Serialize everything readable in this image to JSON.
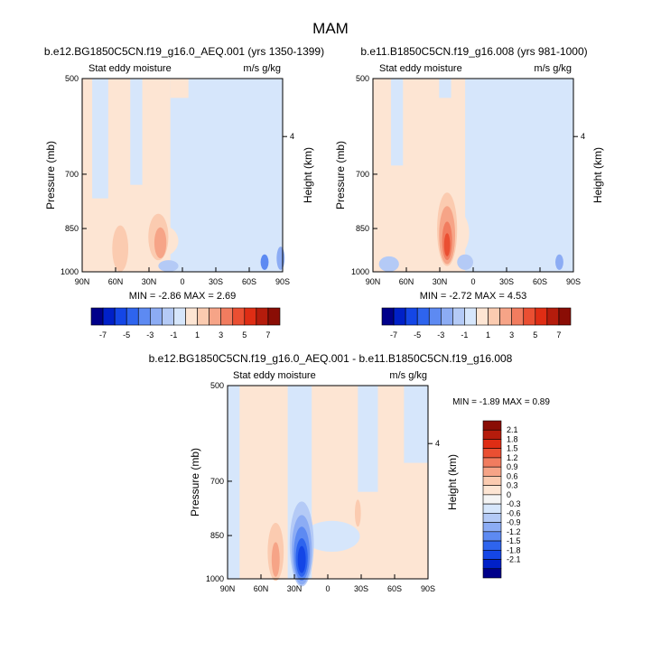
{
  "page_title": "MAM",
  "colors": {
    "neg": [
      "#00008a",
      "#0020c8",
      "#1446e6",
      "#2e64ee",
      "#5d8af2",
      "#8cacf4",
      "#b4caf6",
      "#d6e6fb"
    ],
    "pos": [
      "#fde5d3",
      "#fbcbb0",
      "#f6a487",
      "#f17c5f",
      "#ea4f32",
      "#df2d14",
      "#b51c0c",
      "#8a0d05"
    ],
    "zero": "#f4f4f4",
    "warm_fill": "#fde5d3",
    "cool_fill": "#d6e6fb"
  },
  "chart_data": [
    {
      "type": "heatmap",
      "title": "b.e12.BG1850C5CN.f19_g16.0_AEQ.001 (yrs 1350-1399)",
      "left_string": "Stat eddy moisture",
      "right_string": "m/s g/kg",
      "ylabel": "Pressure (mb)",
      "ylabel_right": "Height (km)",
      "x_ticks": [
        "90N",
        "60N",
        "30N",
        "0",
        "30S",
        "60S",
        "90S"
      ],
      "y_ticks": [
        "500",
        "700",
        "850",
        "1000"
      ],
      "y_ticks_right": [
        "4"
      ],
      "min_text": "MIN =  -2.86  MAX =   2.69",
      "min": -2.86,
      "max": 2.69,
      "colorbar_ticks": [
        "-7",
        "-5",
        "-3",
        "-1",
        "1",
        "3",
        "5",
        "7"
      ]
    },
    {
      "type": "heatmap",
      "title": "b.e11.B1850C5CN.f19_g16.008 (yrs 981-1000)",
      "left_string": "Stat eddy moisture",
      "right_string": "m/s g/kg",
      "ylabel": "Pressure (mb)",
      "ylabel_right": "Height (km)",
      "x_ticks": [
        "90N",
        "60N",
        "30N",
        "0",
        "30S",
        "60S",
        "90S"
      ],
      "y_ticks": [
        "500",
        "700",
        "850",
        "1000"
      ],
      "y_ticks_right": [
        "4"
      ],
      "min_text": "MIN =  -2.72  MAX =   4.53",
      "min": -2.72,
      "max": 4.53,
      "colorbar_ticks": [
        "-7",
        "-5",
        "-3",
        "-1",
        "1",
        "3",
        "5",
        "7"
      ]
    },
    {
      "type": "heatmap",
      "title": "b.e12.BG1850C5CN.f19_g16.0_AEQ.001 - b.e11.B1850C5CN.f19_g16.008",
      "left_string": "Stat eddy moisture",
      "right_string": "m/s g/kg",
      "ylabel": "Pressure (mb)",
      "ylabel_right": "Height (km)",
      "x_ticks": [
        "90N",
        "60N",
        "30N",
        "0",
        "30S",
        "60S",
        "90S"
      ],
      "y_ticks": [
        "500",
        "700",
        "850",
        "1000"
      ],
      "y_ticks_right": [
        "4"
      ],
      "min_text": "MIN =  -1.89  MAX =   0.89",
      "min": -1.89,
      "max": 0.89,
      "colorbar_ticks": [
        "2.1",
        "1.8",
        "1.5",
        "1.2",
        "0.9",
        "0.6",
        "0.3",
        "0",
        "-0.3",
        "-0.6",
        "-0.9",
        "-1.2",
        "-1.5",
        "-1.8",
        "-2.1"
      ]
    }
  ]
}
